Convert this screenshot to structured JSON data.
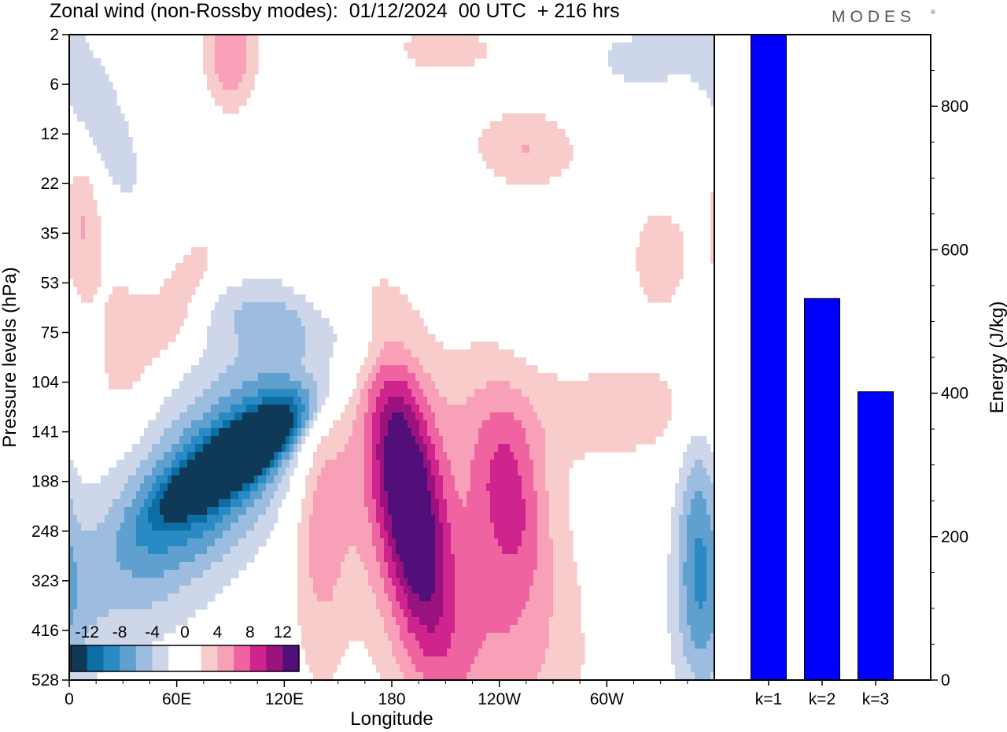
{
  "header": {
    "title": "Zonal wind (non-Rossby modes):  01/12/2024  00 UTC  + 216 hrs",
    "brand": "MODES",
    "brand_mark": "®"
  },
  "chart_data": [
    {
      "type": "heatmap",
      "xlabel": "Longitude",
      "ylabel": "Pressure levels (hPa)",
      "x_ticks": [
        "0",
        "60E",
        "120E",
        "180",
        "120W",
        "60W"
      ],
      "x_tick_degrees": [
        0,
        60,
        120,
        180,
        240,
        300
      ],
      "xlim": [
        0,
        360
      ],
      "y_ticks": [
        "2",
        "6",
        "12",
        "22",
        "35",
        "53",
        "75",
        "104",
        "141",
        "188",
        "248",
        "323",
        "416",
        "528"
      ],
      "y_axis": "categorical pressure levels, 2 hPa at top, 528 hPa at bottom",
      "colorbar": {
        "tick_labels": [
          "-12",
          "-8",
          "-4",
          "0",
          "4",
          "8",
          "12"
        ],
        "tick_values": [
          -12,
          -8,
          -4,
          0,
          4,
          8,
          12
        ],
        "min": -14,
        "max": 14,
        "step": 2,
        "colors": [
          "#0f3a57",
          "#0d6ea6",
          "#2a8ac4",
          "#5fa0cf",
          "#9cbde0",
          "#ced7ea",
          "#ffffff",
          "#ffffff",
          "#f9cccc",
          "#f7a0b8",
          "#ef63a0",
          "#cf238e",
          "#9a127e",
          "#520f7a"
        ]
      },
      "features": [
        {
          "lon": 95,
          "level": 8.6,
          "value": -14,
          "sx": 6,
          "sy": 0.6,
          "rot": -50
        },
        {
          "lon": 95,
          "level": 8.4,
          "value": -11,
          "sx": 10,
          "sy": 1.2,
          "rot": -50
        },
        {
          "lon": 85,
          "level": 8.8,
          "value": -7,
          "sx": 22,
          "sy": 2.0,
          "rot": -40
        },
        {
          "lon": 70,
          "level": 9.0,
          "value": -4,
          "sx": 36,
          "sy": 3.0,
          "rot": -30
        },
        {
          "lon": 120,
          "level": 5.8,
          "value": -3,
          "sx": 45,
          "sy": 0.5,
          "rot": -15
        },
        {
          "lon": 15,
          "level": 1.6,
          "value": -4,
          "sx": 12,
          "sy": 1.5,
          "rot": 20
        },
        {
          "lon": 350,
          "level": 9.8,
          "value": -5,
          "sx": 8,
          "sy": 1.8,
          "rot": 0
        },
        {
          "lon": 355,
          "level": 11.5,
          "value": -3,
          "sx": 12,
          "sy": 1.5,
          "rot": 0
        },
        {
          "lon": 190,
          "level": 9.4,
          "value": 10,
          "sx": 12,
          "sy": 2.0,
          "rot": 8
        },
        {
          "lon": 185,
          "level": 9.6,
          "value": 6,
          "sx": 22,
          "sy": 3.0,
          "rot": 8
        },
        {
          "lon": 245,
          "level": 9.2,
          "value": 6,
          "sx": 14,
          "sy": 1.4,
          "rot": 5
        },
        {
          "lon": 245,
          "level": 10.2,
          "value": 3,
          "sx": 30,
          "sy": 3.5,
          "rot": 15
        },
        {
          "lon": 140,
          "level": 9.6,
          "value": 5,
          "sx": 12,
          "sy": 2.5,
          "rot": 0
        },
        {
          "lon": 60,
          "level": 5.4,
          "value": 5,
          "sx": 12,
          "sy": 1.0,
          "rot": -25
        },
        {
          "lon": 310,
          "level": 7.6,
          "value": 3,
          "sx": 45,
          "sy": 0.8,
          "rot": 0
        },
        {
          "lon": 235,
          "level": 12.6,
          "value": 3,
          "sx": 25,
          "sy": 1.5,
          "rot": 0
        },
        {
          "lon": 255,
          "level": 2.3,
          "value": 4,
          "sx": 22,
          "sy": 0.6,
          "rot": -10
        },
        {
          "lon": 90,
          "level": 0.4,
          "value": 6,
          "sx": 10,
          "sy": 0.8,
          "rot": 0
        },
        {
          "lon": 210,
          "level": 0.3,
          "value": 3,
          "sx": 25,
          "sy": 0.4,
          "rot": 0
        },
        {
          "lon": 320,
          "level": 0.5,
          "value": -3,
          "sx": 22,
          "sy": 0.5,
          "rot": 0
        },
        {
          "lon": 8,
          "level": 3.8,
          "value": 4,
          "sx": 8,
          "sy": 1.2,
          "rot": 0
        },
        {
          "lon": 30,
          "level": 6.0,
          "value": 3,
          "sx": 10,
          "sy": 1.2,
          "rot": 0
        },
        {
          "lon": 330,
          "level": 4.5,
          "value": 3,
          "sx": 15,
          "sy": 1.0,
          "rot": 0
        }
      ]
    },
    {
      "type": "bar",
      "categories": [
        "k=1",
        "k=2",
        "k=3"
      ],
      "values": [
        900,
        532,
        402
      ],
      "ylabel": "Energy (J/kg)",
      "ylim": [
        0,
        900
      ],
      "y_ticks": [
        "0",
        "200",
        "400",
        "600",
        "800"
      ],
      "y_tick_values": [
        0,
        200,
        400,
        600,
        800
      ],
      "bar_color": "#0000ff"
    }
  ]
}
